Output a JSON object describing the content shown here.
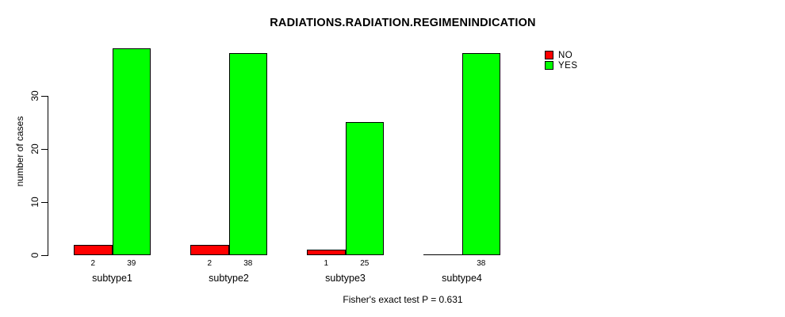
{
  "chart_data": {
    "type": "bar",
    "title": "RADIATIONS.RADIATION.REGIMENINDICATION",
    "ylabel": "number of cases",
    "xlabel": "",
    "footnote": "Fisher's exact test P = 0.631",
    "categories": [
      "subtype1",
      "subtype2",
      "subtype3",
      "subtype4"
    ],
    "series": [
      {
        "name": "NO",
        "color": "#ff0000",
        "values": [
          2,
          2,
          1,
          0
        ]
      },
      {
        "name": "YES",
        "color": "#00ff00",
        "values": [
          39,
          38,
          25,
          38
        ]
      }
    ],
    "bar_value_labels": [
      [
        "2",
        "39"
      ],
      [
        "2",
        "38"
      ],
      [
        "1",
        "25"
      ],
      [
        "",
        "38"
      ]
    ],
    "yticks": [
      0,
      10,
      20,
      30
    ],
    "ylim": [
      0,
      30
    ],
    "grid": false,
    "legend": {
      "position": "top-right",
      "entries": [
        "NO",
        "YES"
      ]
    },
    "axis_color": "#000000",
    "background_color": "#ffffff"
  }
}
